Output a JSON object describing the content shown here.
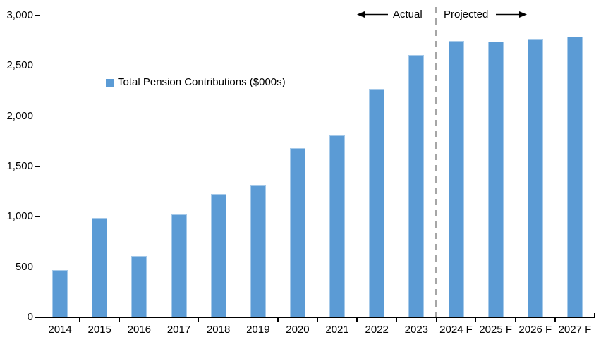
{
  "chart_data": {
    "type": "bar",
    "title": "",
    "legend_label": "Total Pension Contributions ($000s)",
    "categories": [
      "2014",
      "2015",
      "2016",
      "2017",
      "2018",
      "2019",
      "2020",
      "2021",
      "2022",
      "2023",
      "2024 F",
      "2025 F",
      "2026 F",
      "2027 F"
    ],
    "values": [
      470,
      990,
      610,
      1020,
      1230,
      1310,
      1680,
      1810,
      2270,
      2610,
      2750,
      2740,
      2760,
      2790
    ],
    "xlabel": "",
    "ylabel": "",
    "ylim": [
      0,
      3000
    ],
    "ytick_interval": 500,
    "ytick_labels": [
      "0",
      "500",
      "1,000",
      "1,500",
      "2,000",
      "2,500",
      "3,000"
    ],
    "grid": false,
    "legend_position": "inside-upper-left",
    "annotations": {
      "actual_label": "Actual",
      "projected_label": "Projected"
    },
    "divider": {
      "style": "dashed-vertical-line",
      "between_categories": [
        "2023",
        "2024 F"
      ]
    },
    "colors": {
      "bar_fill": "#5B9BD5",
      "bar_edge": "#A5C9E9",
      "divider_line": "#A6A6A6",
      "axis_line": "#000000",
      "text": "#000000"
    }
  }
}
